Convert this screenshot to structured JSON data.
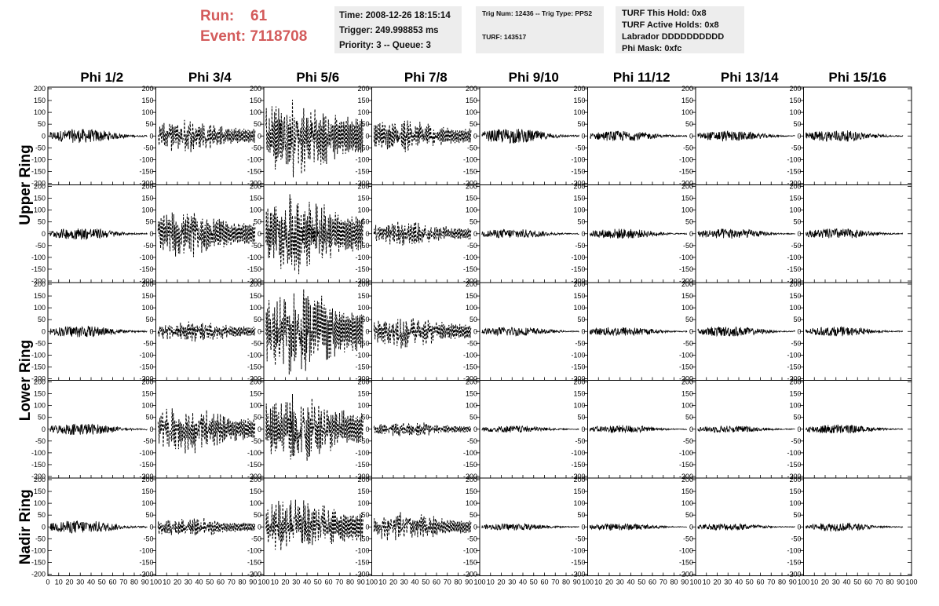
{
  "header": {
    "run_label": "Run:",
    "run_value": "61",
    "event_label": "Event:",
    "event_value": "7118708"
  },
  "time_box": {
    "time": "Time: 2008-12-26 18:15:14",
    "trigger": "Trigger: 249.998853 ms",
    "priority": "Priority: 3 -- Queue: 3"
  },
  "trig_box": {
    "trig": "Trig Num: 12436 -- Trig Type: PPS2",
    "turf": "TURF: 143517"
  },
  "turf_box": {
    "this_hold": "TURF This Hold: 0x8",
    "active_holds": "TURF Active Holds: 0x8",
    "labrador": "Labrador DDDDDDDDDD",
    "phi_mask": "Phi Mask: 0xfc"
  },
  "colors": {
    "header_red": "#d35b5b",
    "info_bg": "#ededed",
    "trace": "#000000"
  },
  "chart_data": {
    "type": "line",
    "columns": [
      "Phi 1/2",
      "Phi 3/4",
      "Phi 5/6",
      "Phi 7/8",
      "Phi 9/10",
      "Phi 11/12",
      "Phi 13/14",
      "Phi 15/16"
    ],
    "ring_labels": [
      {
        "label": "Upper Ring",
        "rows": [
          0,
          1
        ]
      },
      {
        "label": "Lower Ring",
        "rows": [
          2,
          3
        ]
      },
      {
        "label": "Nadir Ring",
        "rows": [
          4
        ]
      }
    ],
    "rows": 5,
    "xlim": [
      0,
      100
    ],
    "ylim": [
      -200,
      200
    ],
    "xticks": [
      0,
      10,
      20,
      30,
      40,
      50,
      60,
      70,
      80,
      90,
      100
    ],
    "yticks": [
      -200,
      -150,
      -100,
      -50,
      0,
      50,
      100,
      150,
      200
    ],
    "x_tick_labels": [
      "0",
      "10",
      "20",
      "30",
      "40",
      "50",
      "60",
      "70",
      "80",
      "90",
      "100"
    ],
    "y_tick_labels": [
      "-200",
      "-150",
      "-100",
      "-50",
      "0",
      "50",
      "100",
      "150",
      "200"
    ],
    "dashed_panels": [
      [
        0,
        1
      ],
      [
        0,
        2
      ],
      [
        0,
        3
      ],
      [
        1,
        1
      ],
      [
        1,
        2
      ],
      [
        1,
        3
      ],
      [
        2,
        1
      ],
      [
        2,
        2
      ],
      [
        2,
        3
      ],
      [
        3,
        1
      ],
      [
        3,
        2
      ],
      [
        3,
        3
      ],
      [
        4,
        1
      ],
      [
        4,
        2
      ],
      [
        4,
        3
      ]
    ],
    "amplitudes": [
      [
        30,
        45,
        110,
        45,
        32,
        22,
        22,
        25
      ],
      [
        25,
        65,
        110,
        35,
        20,
        22,
        22,
        22
      ],
      [
        25,
        30,
        125,
        45,
        20,
        20,
        22,
        20
      ],
      [
        25,
        65,
        95,
        20,
        15,
        17,
        15,
        20
      ],
      [
        28,
        28,
        85,
        40,
        15,
        15,
        15,
        18
      ]
    ]
  }
}
